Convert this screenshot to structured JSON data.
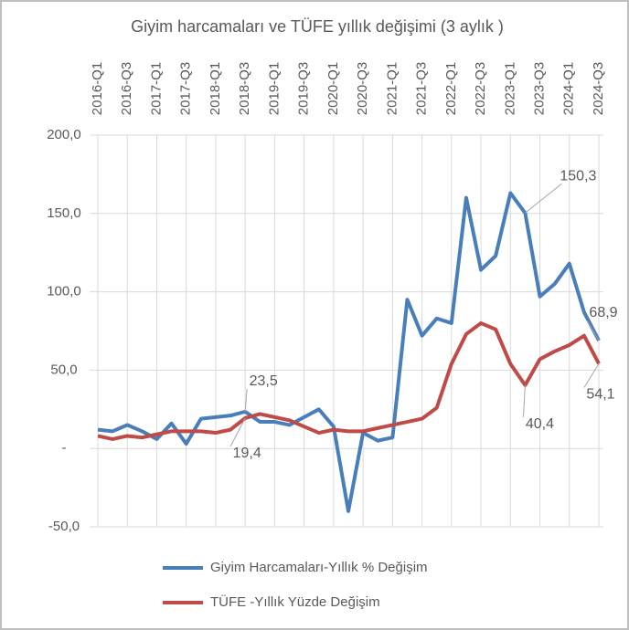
{
  "chart_data": {
    "type": "line",
    "title": "Giyim harcamaları ve TÜFE yıllık değişimi (3 aylık )",
    "categories": [
      "2016-Q1",
      null,
      "2016-Q3",
      null,
      "2017-Q1",
      null,
      "2017-Q3",
      null,
      "2018-Q1",
      null,
      "2018-Q3",
      null,
      "2019-Q1",
      null,
      "2019-Q3",
      null,
      "2020-Q1",
      null,
      "2020-Q3",
      null,
      "2021-Q1",
      null,
      "2021-Q3",
      null,
      "2022-Q1",
      null,
      "2022-Q3",
      null,
      "2023-Q1",
      null,
      "2023-Q3",
      null,
      "2024-Q1",
      null,
      "2024-Q3"
    ],
    "series": [
      {
        "name": "Giyim Harcamaları-Yıllık % Değişim",
        "color": "#4a7ebb",
        "values": [
          12,
          11,
          15,
          11,
          6,
          16,
          3,
          19,
          20,
          21,
          23.5,
          17,
          17,
          15,
          20,
          25,
          14,
          -40,
          10,
          5,
          7,
          95,
          72,
          83,
          80,
          160,
          114,
          123,
          163,
          150.3,
          97,
          105,
          118,
          87,
          68.9
        ],
        "value_labels": [
          null,
          null,
          null,
          null,
          null,
          null,
          null,
          null,
          null,
          null,
          "23,5",
          null,
          null,
          null,
          null,
          null,
          null,
          null,
          null,
          null,
          null,
          null,
          null,
          null,
          null,
          null,
          null,
          null,
          null,
          "150,3",
          null,
          null,
          null,
          null,
          "68,9"
        ]
      },
      {
        "name": "TÜFE -Yıllık Yüzde Değişim",
        "color": "#be4b48",
        "values": [
          8,
          6,
          8,
          7,
          9,
          11,
          11,
          11,
          10,
          12,
          19.4,
          22,
          20,
          18,
          14,
          10,
          12,
          11,
          11,
          13,
          15,
          17,
          19,
          26,
          54,
          73,
          80,
          76,
          54,
          40.4,
          57,
          62,
          66,
          72,
          54.1
        ],
        "value_labels": [
          null,
          null,
          null,
          null,
          null,
          null,
          null,
          null,
          null,
          null,
          "19,4",
          null,
          null,
          null,
          null,
          null,
          null,
          null,
          null,
          null,
          null,
          null,
          null,
          null,
          null,
          null,
          null,
          null,
          null,
          "40,4",
          null,
          null,
          null,
          null,
          "54,1"
        ]
      }
    ],
    "ylim": [
      -50,
      200
    ],
    "yticks": [
      {
        "value": -50,
        "label": "-50,0"
      },
      {
        "value": 0,
        "label": "-"
      },
      {
        "value": 50,
        "label": "50,0"
      },
      {
        "value": 100,
        "label": "100,0"
      },
      {
        "value": 150,
        "label": "150,0"
      },
      {
        "value": 200,
        "label": "200,0"
      }
    ],
    "grid": true
  }
}
